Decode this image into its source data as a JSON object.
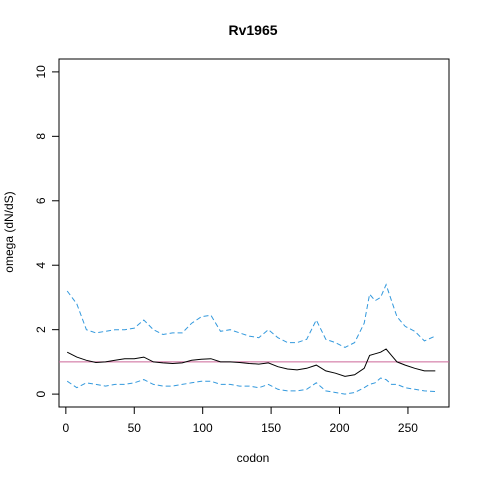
{
  "chart_data": {
    "type": "line",
    "title": "Rv1965",
    "xlabel": "codon",
    "ylabel": "omega (dN/dS)",
    "xlim": [
      -5,
      280
    ],
    "ylim": [
      -0.4,
      10.4
    ],
    "xticks": [
      0,
      50,
      100,
      150,
      200,
      250
    ],
    "yticks": [
      0,
      2,
      4,
      6,
      8,
      10
    ],
    "reference_line": {
      "y": 1,
      "color": "#cc6699"
    },
    "grid": false,
    "colors": {
      "estimate": "#000000",
      "bounds": "#3399dd"
    },
    "x": [
      1,
      8,
      15,
      22,
      29,
      36,
      43,
      50,
      57,
      64,
      71,
      78,
      85,
      92,
      99,
      106,
      113,
      120,
      127,
      134,
      141,
      148,
      155,
      162,
      169,
      176,
      183,
      190,
      197,
      204,
      211,
      218,
      222,
      226,
      230,
      234,
      238,
      242,
      248,
      255,
      262,
      270
    ],
    "series": [
      {
        "values": [
          3.2,
          2.8,
          2.0,
          1.9,
          1.95,
          2.0,
          2.0,
          2.05,
          2.3,
          2.0,
          1.85,
          1.9,
          1.9,
          2.2,
          2.4,
          2.45,
          1.95,
          2.0,
          1.9,
          1.8,
          1.75,
          2.0,
          1.75,
          1.6,
          1.6,
          1.7,
          2.3,
          1.7,
          1.6,
          1.45,
          1.6,
          2.2,
          3.1,
          2.9,
          3.0,
          3.4,
          2.9,
          2.4,
          2.1,
          1.95,
          1.65,
          1.8
        ]
      },
      {
        "values": [
          1.3,
          1.15,
          1.05,
          0.98,
          1.0,
          1.05,
          1.1,
          1.1,
          1.15,
          1.0,
          0.97,
          0.95,
          0.97,
          1.05,
          1.08,
          1.1,
          1.0,
          1.0,
          0.98,
          0.95,
          0.93,
          0.97,
          0.85,
          0.78,
          0.75,
          0.8,
          0.9,
          0.72,
          0.65,
          0.55,
          0.6,
          0.8,
          1.2,
          1.25,
          1.3,
          1.4,
          1.2,
          1.0,
          0.9,
          0.8,
          0.72,
          0.72
        ]
      },
      {
        "values": [
          0.4,
          0.2,
          0.35,
          0.3,
          0.25,
          0.3,
          0.3,
          0.35,
          0.45,
          0.3,
          0.25,
          0.25,
          0.3,
          0.35,
          0.4,
          0.4,
          0.3,
          0.3,
          0.25,
          0.25,
          0.2,
          0.3,
          0.15,
          0.1,
          0.1,
          0.15,
          0.35,
          0.1,
          0.05,
          0.0,
          0.05,
          0.2,
          0.3,
          0.35,
          0.5,
          0.45,
          0.3,
          0.3,
          0.2,
          0.15,
          0.1,
          0.08
        ]
      }
    ]
  }
}
